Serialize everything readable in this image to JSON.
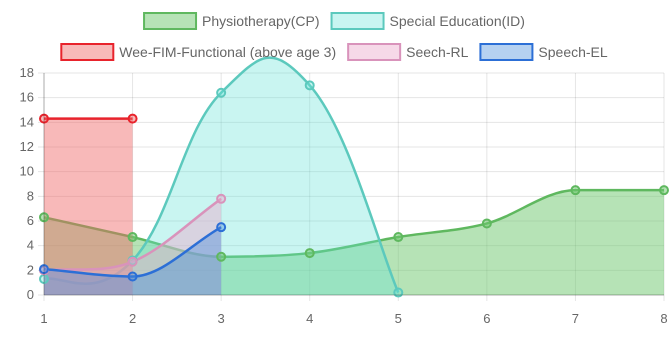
{
  "chart_data": {
    "type": "area",
    "x": [
      1,
      2,
      3,
      4,
      5,
      6,
      7,
      8
    ],
    "ylim": [
      0,
      18
    ],
    "yticks": [
      0,
      2,
      4,
      6,
      8,
      10,
      12,
      14,
      16,
      18
    ],
    "xticks": [
      1,
      2,
      3,
      4,
      5,
      6,
      7,
      8
    ],
    "grid": true,
    "legend_position": "top",
    "series": [
      {
        "name": "Physiotherapy(CP)",
        "x": [
          1,
          2,
          3,
          4,
          5,
          6,
          7,
          8
        ],
        "values": [
          6.3,
          4.7,
          3.1,
          3.4,
          4.7,
          5.8,
          8.5,
          8.5
        ],
        "fill": "rgba(110,200,110,0.5)",
        "stroke": "#5fb85f",
        "curve": "smooth"
      },
      {
        "name": "Special Education(ID)",
        "x": [
          1,
          2,
          3,
          4,
          5
        ],
        "values": [
          1.3,
          2.8,
          16.4,
          17.0,
          0.2
        ],
        "fill": "rgba(100,225,215,0.35)",
        "stroke": "#5cc9bd",
        "curve": "smooth"
      },
      {
        "name": "Wee-FIM-Functional (above age 3)",
        "x": [
          1,
          2
        ],
        "values": [
          14.3,
          14.3
        ],
        "fill": "rgba(240,100,100,0.45)",
        "stroke": "#e8232c",
        "curve": "straight"
      },
      {
        "name": "Seech-RL",
        "x": [
          1,
          2,
          3
        ],
        "values": [
          2.0,
          2.7,
          7.8
        ],
        "fill": "rgba(235,170,205,0.45)",
        "stroke": "#d993bb",
        "curve": "smooth"
      },
      {
        "name": "Speech-EL",
        "x": [
          1,
          2,
          3
        ],
        "values": [
          2.1,
          1.5,
          5.5
        ],
        "fill": "rgba(70,140,220,0.4)",
        "stroke": "#2c6fd6",
        "curve": "smooth"
      }
    ]
  }
}
